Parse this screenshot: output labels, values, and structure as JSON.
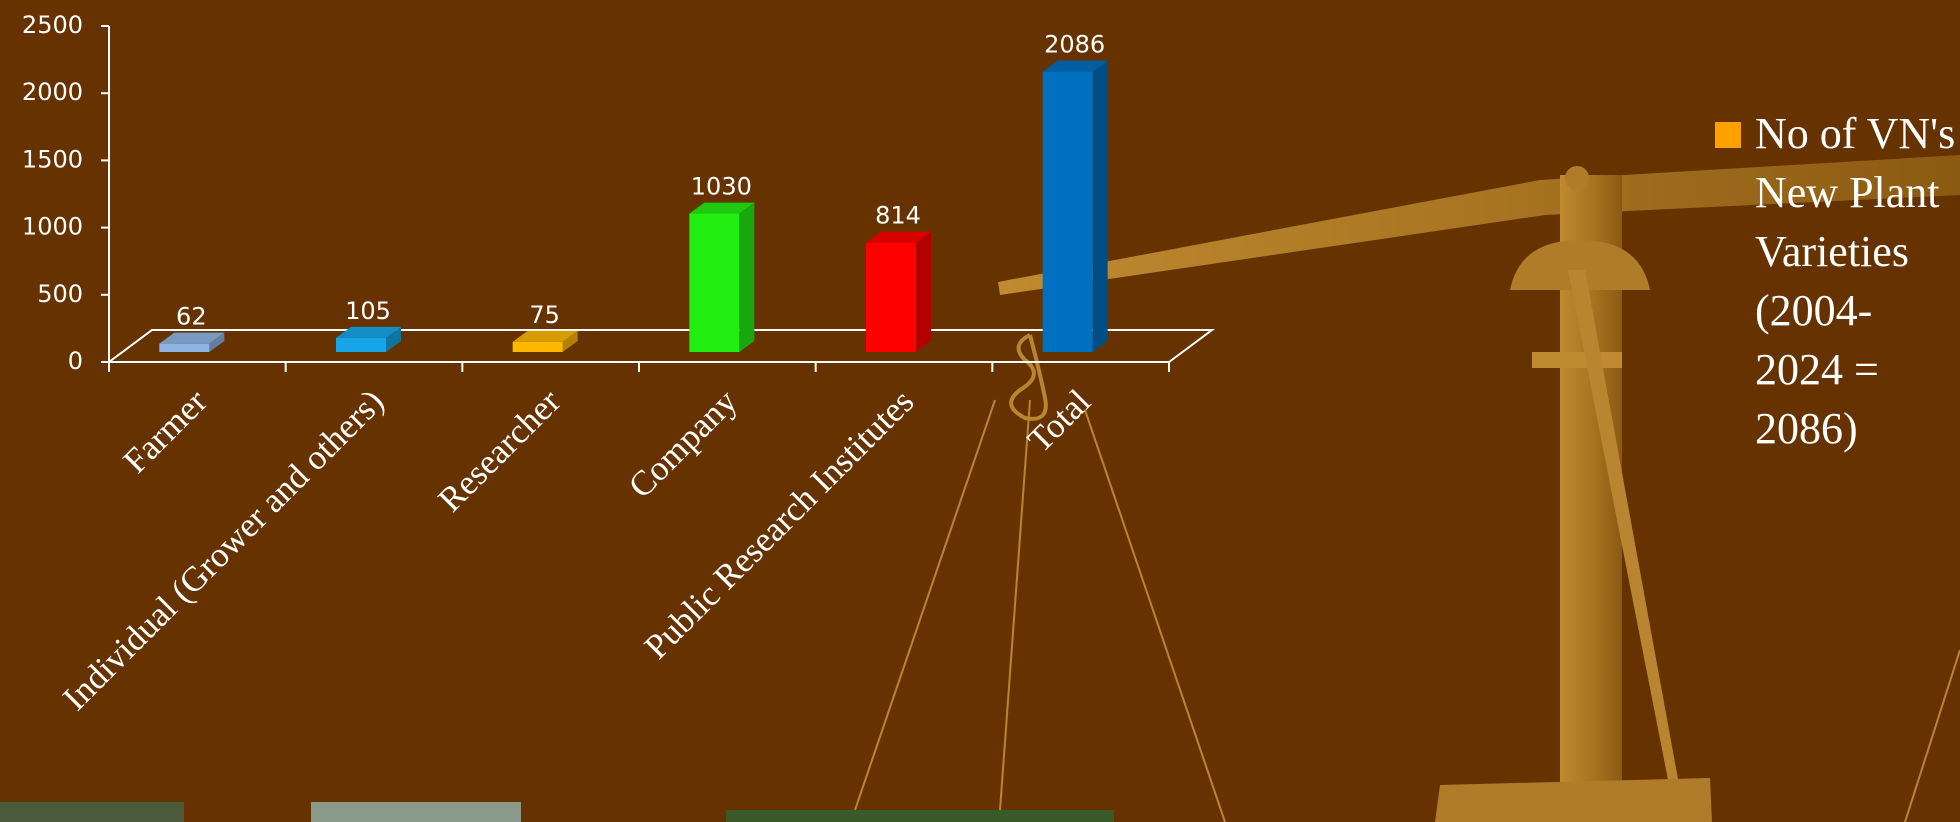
{
  "chart_data": {
    "type": "bar",
    "categories": [
      "Farmer",
      "Individual (Grower and others)",
      "Researcher",
      "Company",
      "Public Research Institutes",
      "Total"
    ],
    "series": [
      {
        "name": "No of VN's New Plant Varieties (2004-2024 = 2086)",
        "color": "#ffa200",
        "values": [
          62,
          105,
          75,
          1030,
          814,
          2086
        ]
      }
    ],
    "bar_colors": [
      "#8db4e2",
      "#16a6e8",
      "#ffb800",
      "#22ee11",
      "#ff0000",
      "#0070c0"
    ],
    "ylim": [
      0,
      2500
    ],
    "yticks": [
      0,
      500,
      1000,
      1500,
      2000,
      2500
    ],
    "legend": "right"
  }
}
